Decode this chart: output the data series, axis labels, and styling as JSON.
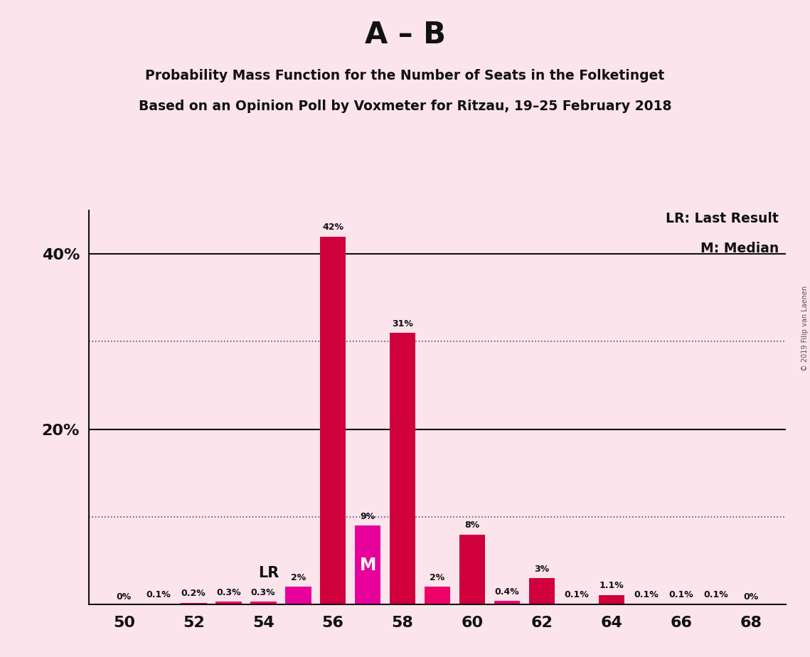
{
  "title_main": "A – B",
  "title_sub1": "Probability Mass Function for the Number of Seats in the Folketinget",
  "title_sub2": "Based on an Opinion Poll by Voxmeter for Ritzau, 19–25 February 2018",
  "copyright": "© 2019 Filip van Laenen",
  "legend_lr": "LR: Last Result",
  "legend_m": "M: Median",
  "seats": [
    50,
    51,
    52,
    53,
    54,
    55,
    56,
    57,
    58,
    59,
    60,
    61,
    62,
    63,
    64,
    65,
    66,
    67,
    68
  ],
  "values": [
    0.0,
    0.1,
    0.2,
    0.3,
    0.3,
    2.0,
    42.0,
    9.0,
    31.0,
    2.0,
    8.0,
    0.4,
    3.0,
    0.1,
    1.1,
    0.1,
    0.1,
    0.1,
    0.0
  ],
  "labels": [
    "0%",
    "0.1%",
    "0.2%",
    "0.3%",
    "0.3%",
    "2%",
    "42%",
    "9%",
    "31%",
    "2%",
    "8%",
    "0.4%",
    "3%",
    "0.1%",
    "1.1%",
    "0.1%",
    "0.1%",
    "0.1%",
    "0%"
  ],
  "lr_seat": 55,
  "median_seat": 57,
  "background_color": "#fce4ec",
  "bar_color_dark": "#d0003c",
  "bar_color_light": "#f0006a",
  "bar_color_magenta": "#e8009a",
  "bar_width": 0.75,
  "ylim_max": 45,
  "xtick_positions": [
    50,
    52,
    54,
    56,
    58,
    60,
    62,
    64,
    66,
    68
  ],
  "xtick_labels": [
    "50",
    "52",
    "54",
    "56",
    "58",
    "60",
    "62",
    "64",
    "66",
    "68"
  ],
  "ytick_solid": [
    20,
    40
  ],
  "ytick_dotted": [
    10,
    30
  ],
  "ytick_labels_map": {
    "20": "20%",
    "40": "40%"
  }
}
